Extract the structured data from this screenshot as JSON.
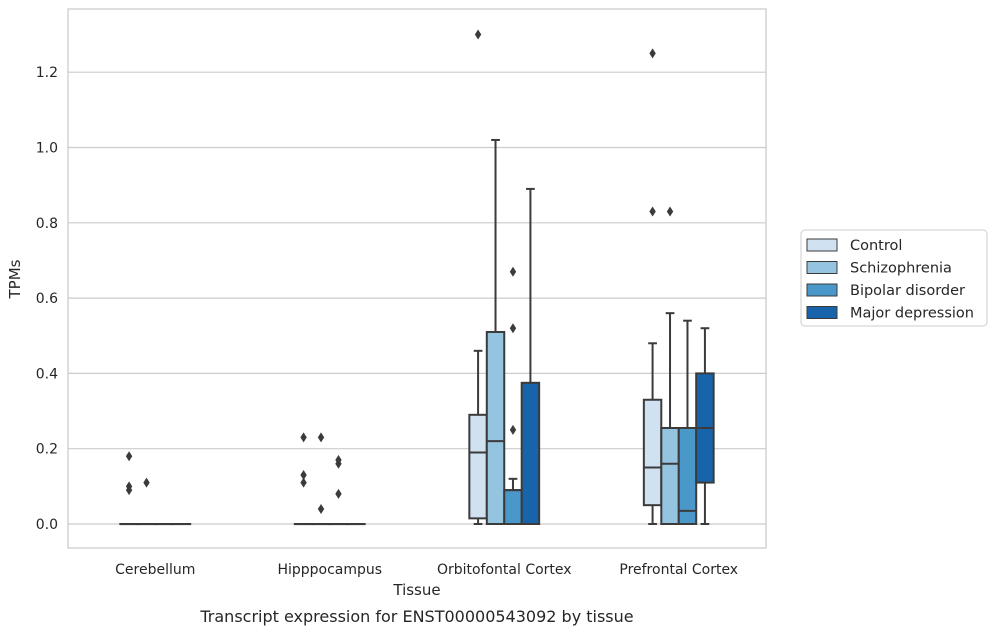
{
  "chart_data": {
    "type": "boxplot",
    "caption": "Transcript expression for ENST00000543092 by tissue",
    "xlabel": "Tissue",
    "ylabel": "TPMs",
    "ylim": [
      -0.065,
      1.375
    ],
    "yticks": [
      0.0,
      0.2,
      0.4,
      0.6,
      0.8,
      1.0,
      1.2
    ],
    "ytick_labels": [
      "0.0",
      "0.2",
      "0.4",
      "0.6",
      "0.8",
      "1.0",
      "1.2"
    ],
    "grid": "horizontal",
    "legend_placement": "outside-right",
    "categories": [
      "Cerebellum",
      "Hipppocampus",
      "Orbitofontal Cortex",
      "Prefrontal Cortex"
    ],
    "series": [
      {
        "name": "Control",
        "color": "#d0e1f2",
        "boxes": [
          {
            "q1": 0.0,
            "median": 0.0,
            "q3": 0.0,
            "whislo": 0.0,
            "whishi": 0.0,
            "fliers": [
              0.18,
              0.1,
              0.09
            ]
          },
          {
            "q1": 0.0,
            "median": 0.0,
            "q3": 0.0,
            "whislo": 0.0,
            "whishi": 0.0,
            "fliers": [
              0.23,
              0.13,
              0.11
            ]
          },
          {
            "q1": 0.015,
            "median": 0.19,
            "q3": 0.29,
            "whislo": 0.0,
            "whishi": 0.46,
            "fliers": [
              1.3
            ]
          },
          {
            "q1": 0.05,
            "median": 0.15,
            "q3": 0.33,
            "whislo": 0.0,
            "whishi": 0.48,
            "fliers": [
              1.25,
              0.83
            ]
          }
        ]
      },
      {
        "name": "Schizophrenia",
        "color": "#94c4df",
        "boxes": [
          {
            "q1": 0.0,
            "median": 0.0,
            "q3": 0.0,
            "whislo": 0.0,
            "whishi": 0.0,
            "fliers": [
              0.11
            ]
          },
          {
            "q1": 0.0,
            "median": 0.0,
            "q3": 0.0,
            "whislo": 0.0,
            "whishi": 0.0,
            "fliers": [
              0.23,
              0.04
            ]
          },
          {
            "q1": 0.0,
            "median": 0.22,
            "q3": 0.51,
            "whislo": 0.0,
            "whishi": 1.02,
            "fliers": []
          },
          {
            "q1": 0.0,
            "median": 0.16,
            "q3": 0.255,
            "whislo": 0.0,
            "whishi": 0.56,
            "fliers": [
              0.83
            ]
          }
        ]
      },
      {
        "name": "Bipolar disorder",
        "color": "#4a98c9",
        "boxes": [
          {
            "q1": 0.0,
            "median": 0.0,
            "q3": 0.0,
            "whislo": 0.0,
            "whishi": 0.0,
            "fliers": []
          },
          {
            "q1": 0.0,
            "median": 0.0,
            "q3": 0.0,
            "whislo": 0.0,
            "whishi": 0.0,
            "fliers": [
              0.17,
              0.16,
              0.08
            ]
          },
          {
            "q1": 0.0,
            "median": 0.09,
            "q3": 0.09,
            "whislo": 0.0,
            "whishi": 0.12,
            "fliers": [
              0.67,
              0.52,
              0.25
            ]
          },
          {
            "q1": 0.0,
            "median": 0.035,
            "q3": 0.255,
            "whislo": 0.0,
            "whishi": 0.54,
            "fliers": []
          }
        ]
      },
      {
        "name": "Major depression",
        "color": "#1764ab",
        "boxes": [
          {
            "q1": 0.0,
            "median": 0.0,
            "q3": 0.0,
            "whislo": 0.0,
            "whishi": 0.0,
            "fliers": []
          },
          {
            "q1": 0.0,
            "median": 0.0,
            "q3": 0.0,
            "whislo": 0.0,
            "whishi": 0.0,
            "fliers": []
          },
          {
            "q1": 0.0,
            "median": 0.0,
            "q3": 0.375,
            "whislo": 0.0,
            "whishi": 0.89,
            "fliers": []
          },
          {
            "q1": 0.11,
            "median": 0.255,
            "q3": 0.4,
            "whislo": 0.0,
            "whishi": 0.52,
            "fliers": []
          }
        ]
      }
    ]
  }
}
